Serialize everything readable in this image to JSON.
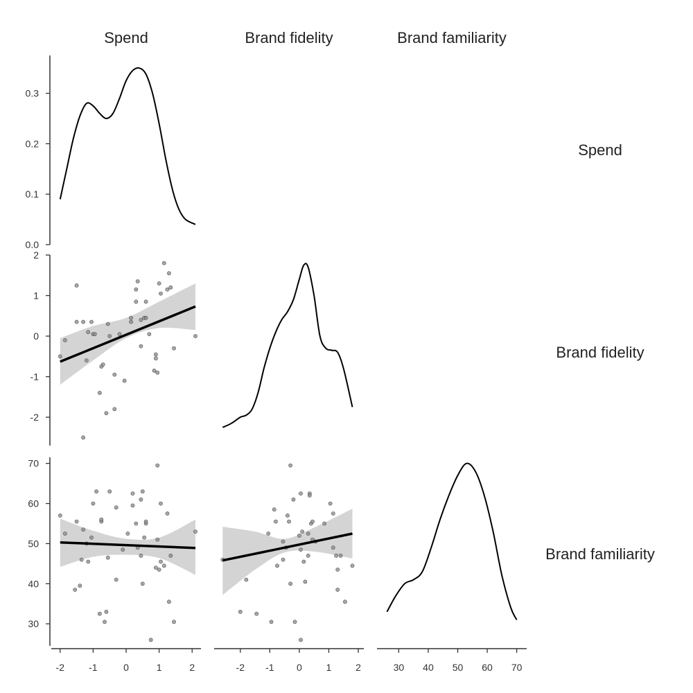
{
  "chart_data": {
    "type": "scatter",
    "variables": [
      "Spend",
      "Brand fidelity",
      "Brand familiarity"
    ],
    "axes": {
      "Spend": {
        "range": [
          -2.1,
          2.1
        ],
        "ticks": [
          -2,
          -1,
          0,
          1,
          2
        ]
      },
      "Brand fidelity": {
        "range": [
          -2.7,
          2.0
        ],
        "ticks": [
          -2,
          -1,
          0,
          1,
          2
        ]
      },
      "Brand familiarity": {
        "range": [
          24.5,
          71.5
        ],
        "ticks": [
          30,
          40,
          50,
          60,
          70
        ]
      }
    },
    "density_scale": {
      "range": [
        0,
        0.375
      ],
      "ticks": [
        "0.0",
        "0.1",
        "0.2",
        "0.3"
      ],
      "tick_values": [
        0,
        0.1,
        0.2,
        0.3
      ]
    },
    "densities": {
      "Spend": [
        [
          -2.0,
          0.09
        ],
        [
          -1.8,
          0.15
        ],
        [
          -1.6,
          0.21
        ],
        [
          -1.4,
          0.255
        ],
        [
          -1.2,
          0.28
        ],
        [
          -1.0,
          0.275
        ],
        [
          -0.8,
          0.26
        ],
        [
          -0.6,
          0.25
        ],
        [
          -0.4,
          0.26
        ],
        [
          -0.2,
          0.29
        ],
        [
          0.0,
          0.325
        ],
        [
          0.2,
          0.345
        ],
        [
          0.4,
          0.35
        ],
        [
          0.6,
          0.338
        ],
        [
          0.8,
          0.3
        ],
        [
          1.0,
          0.24
        ],
        [
          1.2,
          0.17
        ],
        [
          1.4,
          0.11
        ],
        [
          1.6,
          0.07
        ],
        [
          1.8,
          0.05
        ],
        [
          2.1,
          0.04
        ]
      ],
      "Brand fidelity": [
        [
          -2.6,
          -2.25
        ],
        [
          -2.3,
          -2.15
        ],
        [
          -2.0,
          -2.0
        ],
        [
          -1.8,
          -1.95
        ],
        [
          -1.6,
          -1.8
        ],
        [
          -1.4,
          -1.4
        ],
        [
          -1.2,
          -0.8
        ],
        [
          -1.0,
          -0.3
        ],
        [
          -0.8,
          0.1
        ],
        [
          -0.6,
          0.4
        ],
        [
          -0.4,
          0.6
        ],
        [
          -0.2,
          0.9
        ],
        [
          0.0,
          1.4
        ],
        [
          0.15,
          1.75
        ],
        [
          0.3,
          1.7
        ],
        [
          0.5,
          1.0
        ],
        [
          0.7,
          0.0
        ],
        [
          0.9,
          -0.3
        ],
        [
          1.1,
          -0.35
        ],
        [
          1.3,
          -0.4
        ],
        [
          1.5,
          -0.8
        ],
        [
          1.8,
          -1.75
        ]
      ],
      "Brand familiarity": [
        [
          26,
          33
        ],
        [
          29,
          37
        ],
        [
          32,
          40
        ],
        [
          35,
          41
        ],
        [
          38,
          43
        ],
        [
          41,
          49
        ],
        [
          44,
          56
        ],
        [
          47,
          62
        ],
        [
          50,
          67
        ],
        [
          53,
          70
        ],
        [
          56,
          68
        ],
        [
          59,
          62
        ],
        [
          62,
          53
        ],
        [
          65,
          42
        ],
        [
          68,
          34
        ],
        [
          70,
          31
        ]
      ]
    },
    "pairs": [
      {
        "x_var": "Spend",
        "y_var": "Brand fidelity",
        "points": [
          [
            -2.0,
            -0.5
          ],
          [
            -1.85,
            -0.1
          ],
          [
            -1.5,
            1.25
          ],
          [
            -1.5,
            0.35
          ],
          [
            -1.3,
            0.35
          ],
          [
            -1.3,
            -2.5
          ],
          [
            -1.2,
            -0.6
          ],
          [
            -1.15,
            0.1
          ],
          [
            -1.05,
            0.35
          ],
          [
            -1.0,
            0.05
          ],
          [
            -0.95,
            0.05
          ],
          [
            -0.8,
            -1.4
          ],
          [
            -0.75,
            -0.75
          ],
          [
            -0.7,
            -0.7
          ],
          [
            -0.6,
            -1.9
          ],
          [
            -0.55,
            0.3
          ],
          [
            -0.5,
            0.0
          ],
          [
            -0.35,
            -0.95
          ],
          [
            -0.35,
            -1.8
          ],
          [
            -0.2,
            0.05
          ],
          [
            -0.05,
            -1.1
          ],
          [
            0.15,
            0.45
          ],
          [
            0.15,
            0.35
          ],
          [
            0.3,
            0.85
          ],
          [
            0.3,
            1.15
          ],
          [
            0.35,
            1.35
          ],
          [
            0.45,
            -0.25
          ],
          [
            0.45,
            0.4
          ],
          [
            0.55,
            0.45
          ],
          [
            0.6,
            0.45
          ],
          [
            0.6,
            0.85
          ],
          [
            0.7,
            0.05
          ],
          [
            0.85,
            -0.85
          ],
          [
            0.9,
            -0.45
          ],
          [
            0.9,
            -0.55
          ],
          [
            0.95,
            -0.9
          ],
          [
            1.0,
            1.3
          ],
          [
            1.05,
            1.05
          ],
          [
            1.15,
            1.8
          ],
          [
            1.25,
            1.15
          ],
          [
            1.3,
            1.55
          ],
          [
            1.35,
            1.2
          ],
          [
            1.45,
            -0.3
          ],
          [
            2.1,
            0.0
          ]
        ],
        "fit": {
          "x": [
            -2.0,
            2.1
          ],
          "y": [
            -0.63,
            0.73
          ]
        },
        "band": {
          "x": [
            -2.0,
            -1.0,
            0.0,
            1.0,
            2.1
          ],
          "lower": [
            -1.2,
            -0.6,
            -0.05,
            0.2,
            0.15
          ],
          "upper": [
            -0.05,
            0.25,
            0.45,
            0.85,
            1.3
          ]
        }
      },
      {
        "x_var": "Spend",
        "y_var": "Brand familiarity",
        "points": [
          [
            -2.0,
            57
          ],
          [
            -1.85,
            52.5
          ],
          [
            -1.55,
            38.5
          ],
          [
            -1.5,
            55.5
          ],
          [
            -1.4,
            39.5
          ],
          [
            -1.35,
            46
          ],
          [
            -1.3,
            53.5
          ],
          [
            -1.2,
            50
          ],
          [
            -1.15,
            45.5
          ],
          [
            -1.05,
            51.5
          ],
          [
            -1.0,
            60
          ],
          [
            -0.9,
            63
          ],
          [
            -0.8,
            32.5
          ],
          [
            -0.75,
            55.5
          ],
          [
            -0.75,
            56
          ],
          [
            -0.65,
            30.5
          ],
          [
            -0.6,
            33
          ],
          [
            -0.55,
            46.5
          ],
          [
            -0.5,
            63
          ],
          [
            -0.3,
            59
          ],
          [
            -0.3,
            41
          ],
          [
            -0.1,
            48.5
          ],
          [
            0.05,
            52.5
          ],
          [
            0.2,
            62.5
          ],
          [
            0.2,
            59.5
          ],
          [
            0.3,
            55
          ],
          [
            0.35,
            49
          ],
          [
            0.45,
            47
          ],
          [
            0.45,
            61
          ],
          [
            0.5,
            63
          ],
          [
            0.5,
            40
          ],
          [
            0.55,
            51.5
          ],
          [
            0.6,
            55
          ],
          [
            0.6,
            55.5
          ],
          [
            0.75,
            26
          ],
          [
            0.9,
            44
          ],
          [
            0.95,
            69.5
          ],
          [
            0.95,
            51
          ],
          [
            1.0,
            43.5
          ],
          [
            1.05,
            45.5
          ],
          [
            1.05,
            60
          ],
          [
            1.15,
            44.5
          ],
          [
            1.25,
            57.5
          ],
          [
            1.3,
            35.5
          ],
          [
            1.35,
            47
          ],
          [
            1.45,
            30.5
          ],
          [
            2.1,
            53
          ]
        ],
        "fit": {
          "x": [
            -2.0,
            2.1
          ],
          "y": [
            50.3,
            48.9
          ]
        },
        "band": {
          "x": [
            -2.0,
            -1.0,
            0.0,
            1.0,
            2.1
          ],
          "lower": [
            44.2,
            46.7,
            47.2,
            46.4,
            42.2
          ],
          "upper": [
            56.2,
            53.2,
            51.2,
            51.5,
            56.0
          ]
        }
      },
      {
        "x_var": "Brand fidelity",
        "y_var": "Brand familiarity",
        "points": [
          [
            -2.6,
            46
          ],
          [
            -2.0,
            33
          ],
          [
            -1.8,
            41
          ],
          [
            -1.45,
            32.5
          ],
          [
            -1.05,
            52.5
          ],
          [
            -0.95,
            30.5
          ],
          [
            -0.8,
            55.5
          ],
          [
            -0.85,
            58.5
          ],
          [
            -0.75,
            44.5
          ],
          [
            -0.55,
            46
          ],
          [
            -0.55,
            50.5
          ],
          [
            -0.45,
            49
          ],
          [
            -0.4,
            57
          ],
          [
            -0.35,
            55.5
          ],
          [
            -0.3,
            40
          ],
          [
            -0.3,
            69.5
          ],
          [
            -0.2,
            61
          ],
          [
            -0.15,
            30.5
          ],
          [
            0.0,
            52
          ],
          [
            0.05,
            62.5
          ],
          [
            0.05,
            48.5
          ],
          [
            0.05,
            26
          ],
          [
            0.1,
            53
          ],
          [
            0.15,
            45.5
          ],
          [
            0.2,
            40.5
          ],
          [
            0.3,
            47
          ],
          [
            0.3,
            52.5
          ],
          [
            0.35,
            62.5
          ],
          [
            0.35,
            62
          ],
          [
            0.4,
            55
          ],
          [
            0.45,
            55.5
          ],
          [
            0.45,
            51
          ],
          [
            0.55,
            50.5
          ],
          [
            0.85,
            55
          ],
          [
            1.05,
            60
          ],
          [
            1.15,
            57.5
          ],
          [
            1.15,
            49
          ],
          [
            1.25,
            47
          ],
          [
            1.3,
            43.5
          ],
          [
            1.3,
            38.5
          ],
          [
            1.4,
            47
          ],
          [
            1.55,
            35.5
          ],
          [
            1.8,
            44.5
          ]
        ],
        "fit": {
          "x": [
            -2.6,
            1.8
          ],
          "y": [
            45.8,
            52.5
          ]
        },
        "band": {
          "x": [
            -2.6,
            -1.5,
            -0.5,
            0.5,
            1.8
          ],
          "lower": [
            37.2,
            43.5,
            47.8,
            48.0,
            46.3
          ],
          "upper": [
            54.2,
            53.0,
            51.2,
            54.0,
            58.7
          ]
        }
      }
    ]
  }
}
